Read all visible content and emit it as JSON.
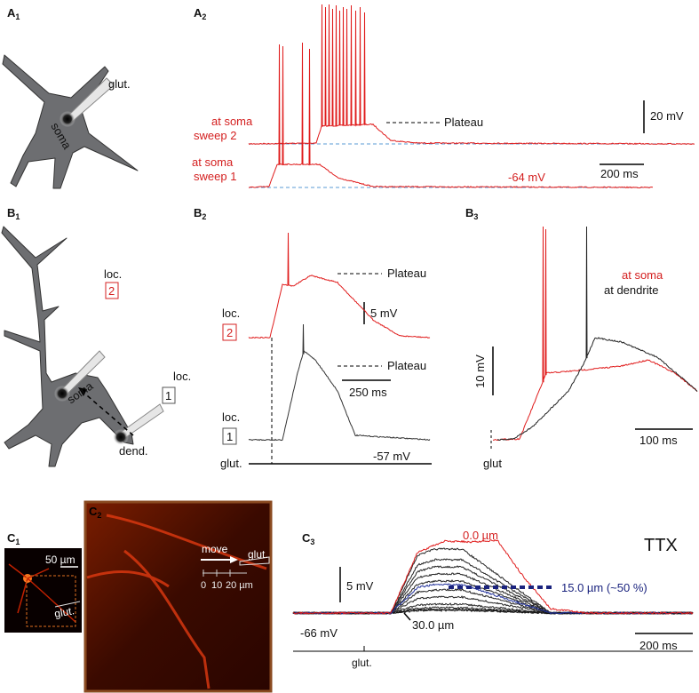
{
  "A1": {
    "label": "A",
    "sub": "1",
    "glut": "glut.",
    "soma": "soma"
  },
  "A2": {
    "label": "A",
    "sub": "2",
    "sweep2": [
      "at soma",
      "sweep 2"
    ],
    "sweep1": [
      "at soma",
      "sweep 1"
    ],
    "plateau": "Plateau",
    "scale_v": "20 mV",
    "scale_t": "200 ms",
    "rest": "-64 mV"
  },
  "B1": {
    "label": "B",
    "sub": "1",
    "loc2": "loc.",
    "box2": "2",
    "loc1": "loc.",
    "box1": "1",
    "soma": "soma",
    "dend": "dend."
  },
  "B2": {
    "label": "B",
    "sub": "2",
    "plateau_top": "Plateau",
    "plateau_bottom": "Plateau",
    "scale_v": "5 mV",
    "scale_t": "250 ms",
    "loc2": "loc.",
    "box2": "2",
    "loc1": "loc.",
    "box1": "1",
    "rest": "-57 mV",
    "glut": "glut."
  },
  "B3": {
    "label": "B",
    "sub": "3",
    "legend": [
      "at soma",
      "at dendrite"
    ],
    "scale_v": "10 mV",
    "scale_t": "100 ms",
    "glut": "glut"
  },
  "C1": {
    "label": "C",
    "sub": "1",
    "scale": "50 µm",
    "glut": "glut."
  },
  "C2": {
    "label": "C",
    "sub": "2",
    "move": "move",
    "glut": "glut.",
    "scale_ticks": [
      "0",
      "10",
      "20 µm"
    ]
  },
  "C3": {
    "label": "C",
    "sub": "3",
    "drug": "TTX",
    "near": "0.0 µm",
    "half": "15.0 µm (~50 %)",
    "far": "30.0 µm",
    "scale_v": "5 mV",
    "rest": "-66 mV",
    "scale_t": "200 ms",
    "glut": "glut."
  }
}
